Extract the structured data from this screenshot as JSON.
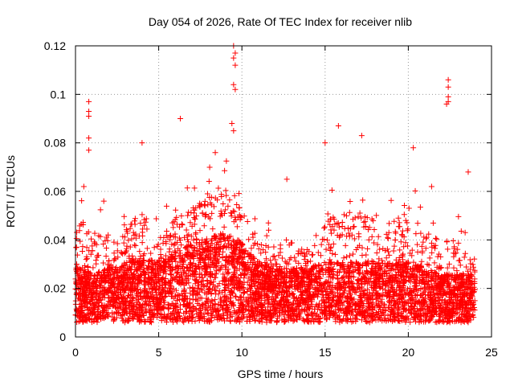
{
  "chart_data": {
    "type": "scatter",
    "title": "Day 054 of 2026, Rate Of TEC Index for receiver nlib",
    "xlabel": "GPS time / hours",
    "ylabel": "ROTI / TECUs",
    "xlim": [
      0,
      25
    ],
    "ylim": [
      0,
      0.12
    ],
    "grid": true,
    "marker": "+",
    "marker_color": "#ff0000",
    "x_ticks": [
      0,
      5,
      10,
      15,
      20,
      25
    ],
    "x_tick_labels": [
      "0",
      "5",
      "10",
      "15",
      "20",
      "25"
    ],
    "y_ticks": [
      0,
      0.02,
      0.04,
      0.06,
      0.08,
      0.1,
      0.12
    ],
    "y_tick_labels": [
      "0",
      "0.02",
      "0.04",
      "0.06",
      "0.08",
      "0.1",
      "0.12"
    ],
    "series": [
      {
        "name": "ROTI",
        "description_profile": [
          [
            0.0,
            0.02,
            0.06
          ],
          [
            1.0,
            0.016,
            0.06
          ],
          [
            2.0,
            0.018,
            0.045
          ],
          [
            3.0,
            0.02,
            0.055
          ],
          [
            4.0,
            0.022,
            0.065
          ],
          [
            5.0,
            0.02,
            0.05
          ],
          [
            6.0,
            0.024,
            0.06
          ],
          [
            7.0,
            0.026,
            0.065
          ],
          [
            8.0,
            0.028,
            0.07
          ],
          [
            9.0,
            0.03,
            0.08
          ],
          [
            10.0,
            0.026,
            0.065
          ],
          [
            11.0,
            0.02,
            0.05
          ],
          [
            12.0,
            0.018,
            0.045
          ],
          [
            13.0,
            0.018,
            0.05
          ],
          [
            14.0,
            0.018,
            0.045
          ],
          [
            15.0,
            0.02,
            0.06
          ],
          [
            16.0,
            0.02,
            0.065
          ],
          [
            17.0,
            0.02,
            0.065
          ],
          [
            18.0,
            0.02,
            0.06
          ],
          [
            19.0,
            0.02,
            0.06
          ],
          [
            20.0,
            0.02,
            0.065
          ],
          [
            21.0,
            0.018,
            0.055
          ],
          [
            22.0,
            0.016,
            0.05
          ],
          [
            23.0,
            0.016,
            0.05
          ],
          [
            24.0,
            0.016,
            0.035
          ]
        ],
        "highlighted_points": [
          {
            "x": 0.8,
            "y": 0.097
          },
          {
            "x": 0.8,
            "y": 0.093
          },
          {
            "x": 0.8,
            "y": 0.091
          },
          {
            "x": 0.8,
            "y": 0.082
          },
          {
            "x": 0.8,
            "y": 0.077
          },
          {
            "x": 0.5,
            "y": 0.062
          },
          {
            "x": 1.7,
            "y": 0.056
          },
          {
            "x": 4.0,
            "y": 0.08
          },
          {
            "x": 6.3,
            "y": 0.09
          },
          {
            "x": 9.5,
            "y": 0.12
          },
          {
            "x": 9.6,
            "y": 0.117
          },
          {
            "x": 9.5,
            "y": 0.115
          },
          {
            "x": 9.6,
            "y": 0.112
          },
          {
            "x": 9.5,
            "y": 0.104
          },
          {
            "x": 9.6,
            "y": 0.102
          },
          {
            "x": 9.4,
            "y": 0.088
          },
          {
            "x": 9.5,
            "y": 0.085
          },
          {
            "x": 8.4,
            "y": 0.076
          },
          {
            "x": 12.7,
            "y": 0.065
          },
          {
            "x": 15.8,
            "y": 0.087
          },
          {
            "x": 17.2,
            "y": 0.083
          },
          {
            "x": 15.0,
            "y": 0.08
          },
          {
            "x": 20.3,
            "y": 0.078
          },
          {
            "x": 22.4,
            "y": 0.106
          },
          {
            "x": 22.4,
            "y": 0.103
          },
          {
            "x": 22.4,
            "y": 0.099
          },
          {
            "x": 22.4,
            "y": 0.097
          },
          {
            "x": 22.3,
            "y": 0.096
          },
          {
            "x": 21.4,
            "y": 0.062
          },
          {
            "x": 23.6,
            "y": 0.068
          }
        ]
      }
    ]
  }
}
